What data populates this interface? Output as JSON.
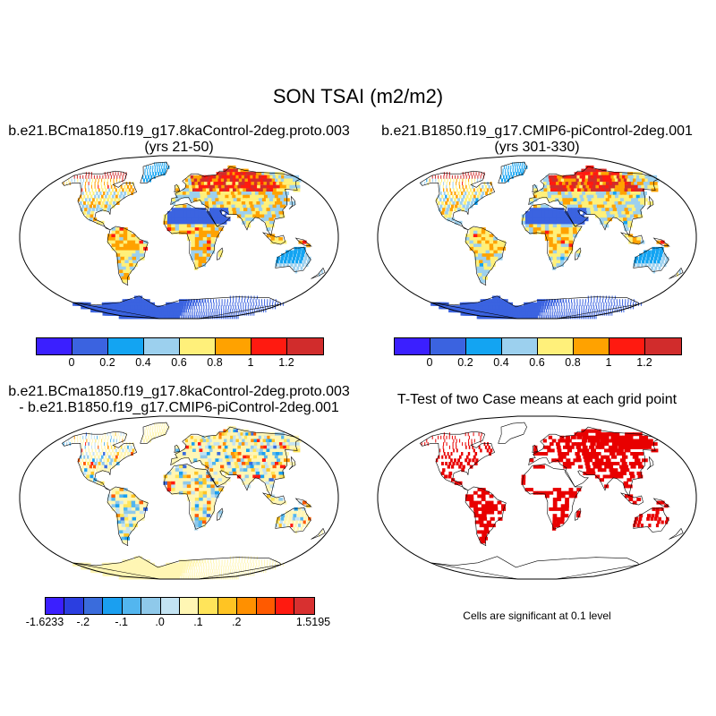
{
  "title": "SON TSAI (m2/m2)",
  "panels": [
    {
      "id": "case1",
      "title_line1": "b.e21.BCma1850.f19_g17.8kaControl-2deg.proto.003",
      "title_line2": "(yrs 21-50)"
    },
    {
      "id": "case2",
      "title_line1": "b.e21.B1850.f19_g17.CMIP6-piControl-2deg.001",
      "title_line2": "(yrs 301-330)"
    },
    {
      "id": "diff",
      "title_line1": "b.e21.BCma1850.f19_g17.8kaControl-2deg.proto.003",
      "title_line2": "- b.e21.B1850.f19_g17.CMIP6-piControl-2deg.001"
    },
    {
      "id": "ttest",
      "title_line1": "T-Test of two Case means at each grid point",
      "note": "Cells are significant at 0.1 level"
    }
  ],
  "colorbar_main": {
    "colors": [
      "#3b1fff",
      "#3b63e0",
      "#13a4f2",
      "#9cd0ee",
      "#fff07a",
      "#ffa200",
      "#ff1a10",
      "#d12c2c"
    ],
    "labels": [
      "0",
      "0.2",
      "0.4",
      "0.6",
      "0.8",
      "1",
      "1.2"
    ]
  },
  "colorbar_diff": {
    "colors": [
      "#3b1fff",
      "#2b3ee0",
      "#3a6cdc",
      "#1a9ff0",
      "#53b6ef",
      "#8fc9ea",
      "#c3e3f2",
      "#fff6b4",
      "#ffe45a",
      "#ffc423",
      "#ff9000",
      "#ff5a00",
      "#ff1a10",
      "#d83030"
    ],
    "labels": [
      "-1.6233",
      "-.2",
      "-.1",
      ".0",
      ".1",
      ".2",
      "1.5195"
    ],
    "label_bounds": [
      0,
      2,
      4,
      6,
      8,
      10,
      14
    ]
  },
  "significance_color": "#e80000"
}
